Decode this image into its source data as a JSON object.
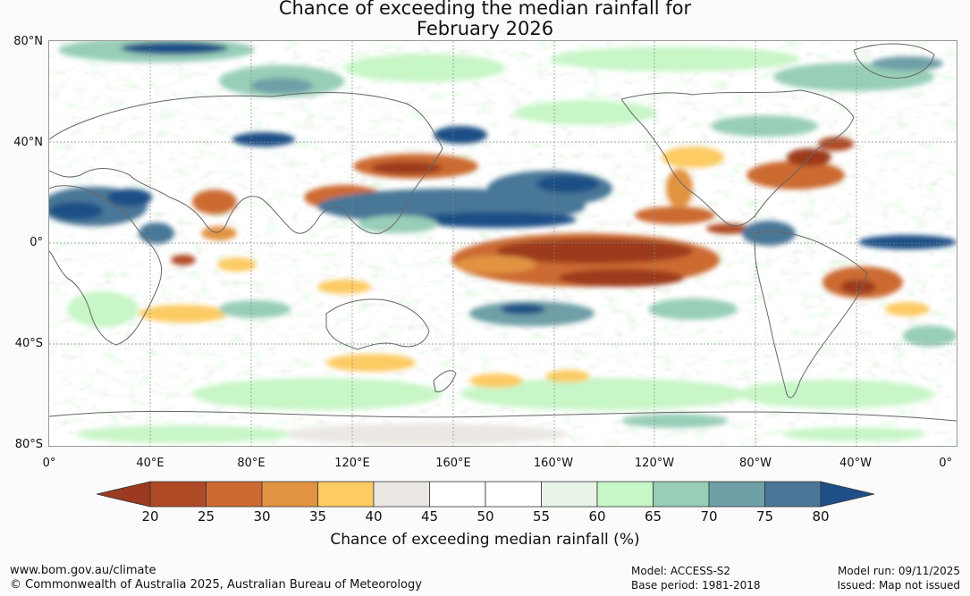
{
  "title_line1": "Chance of exceeding the median rainfall for",
  "title_line2": "February 2026",
  "map": {
    "type": "global probability map",
    "projection": "equirectangular, 0° to 360°, 80°N to 80°S",
    "lat_labels": [
      "80°N",
      "40°N",
      "0°",
      "40°S",
      "80°S"
    ],
    "lon_labels": [
      "0°",
      "40°E",
      "80°E",
      "120°E",
      "160°E",
      "160°W",
      "120°W",
      "80°W",
      "40°W",
      "0°"
    ]
  },
  "legend": {
    "title": "Chance of exceeding median rainfall (%)",
    "ticks": [
      "20",
      "25",
      "30",
      "35",
      "40",
      "45",
      "50",
      "55",
      "60",
      "65",
      "70",
      "75",
      "80"
    ],
    "colors": [
      "#9c3a1f",
      "#b04b27",
      "#cc6a32",
      "#e29342",
      "#fccb63",
      "#ebe8e4",
      "#ffffff",
      "#ffffff",
      "#e9f4e8",
      "#c7f6c7",
      "#98ceb7",
      "#6f9fa7",
      "#4a7797",
      "#1e4f86"
    ]
  },
  "footer": {
    "website": "www.bom.gov.au/climate",
    "copyright": "© Commonwealth of Australia 2025, Australian Bureau of Meteorology",
    "model": "Model: ACCESS-S2",
    "base_period": "Base period: 1981-2018",
    "model_run": "Model run: 09/11/2025",
    "issued": "Issued: Map not issued"
  }
}
